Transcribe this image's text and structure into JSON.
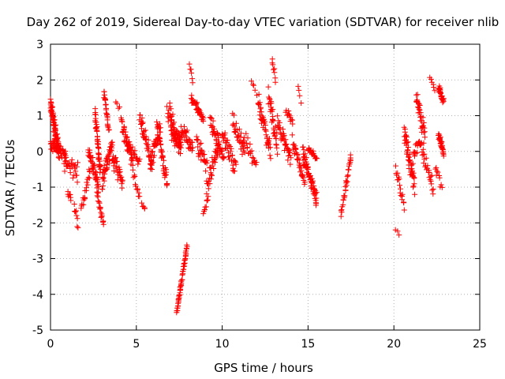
{
  "chart_data": {
    "type": "scatter",
    "title": "Day 262 of 2019, Sidereal Day-to-day VTEC variation (SDTVAR) for receiver nlib",
    "xlabel": "GPS time / hours",
    "ylabel": "SDTVAR / TECUs",
    "xlim": [
      0,
      25
    ],
    "ylim": [
      -5,
      3
    ],
    "xticks": [
      "0",
      "5",
      "10",
      "15",
      "20",
      "25"
    ],
    "yticks": [
      "-5",
      "-4",
      "-3",
      "-2",
      "-1",
      "0",
      "1",
      "2",
      "3"
    ],
    "grid": true,
    "marker": "plus",
    "color": "#ff0000",
    "segments": [
      {
        "x": [
          0.0,
          0.5
        ],
        "y": [
          1.3,
          0.0
        ],
        "n": 90,
        "noise": 0.3,
        "seed": 1
      },
      {
        "x": [
          0.0,
          0.9
        ],
        "y": [
          0.2,
          -0.1
        ],
        "n": 50,
        "noise": 0.25,
        "seed": 2
      },
      {
        "x": [
          0.8,
          1.6
        ],
        "y": [
          -0.3,
          -0.6
        ],
        "n": 30,
        "noise": 0.3,
        "seed": 3
      },
      {
        "x": [
          1.0,
          1.2
        ],
        "y": [
          -1.2,
          -1.3
        ],
        "n": 8,
        "noise": 0.1,
        "seed": 4
      },
      {
        "x": [
          1.4,
          1.6
        ],
        "y": [
          -1.5,
          -2.1
        ],
        "n": 8,
        "noise": 0.1,
        "seed": 5
      },
      {
        "x": [
          1.8,
          2.3
        ],
        "y": [
          -1.6,
          -0.5
        ],
        "n": 20,
        "noise": 0.2,
        "seed": 6
      },
      {
        "x": [
          2.2,
          2.8
        ],
        "y": [
          0.1,
          -1.0
        ],
        "n": 45,
        "noise": 0.3,
        "seed": 7
      },
      {
        "x": [
          2.6,
          2.9
        ],
        "y": [
          1.1,
          -0.6
        ],
        "n": 45,
        "noise": 0.2,
        "seed": 8
      },
      {
        "x": [
          2.7,
          3.1
        ],
        "y": [
          -1.2,
          -2.0
        ],
        "n": 20,
        "noise": 0.15,
        "seed": 9
      },
      {
        "x": [
          3.0,
          3.6
        ],
        "y": [
          -0.9,
          0.3
        ],
        "n": 45,
        "noise": 0.3,
        "seed": 10
      },
      {
        "x": [
          3.1,
          3.4
        ],
        "y": [
          1.7,
          0.6
        ],
        "n": 25,
        "noise": 0.15,
        "seed": 11
      },
      {
        "x": [
          3.6,
          4.2
        ],
        "y": [
          -0.2,
          -0.9
        ],
        "n": 35,
        "noise": 0.3,
        "seed": 12
      },
      {
        "x": [
          3.8,
          4.0
        ],
        "y": [
          1.4,
          1.2
        ],
        "n": 4,
        "noise": 0.1,
        "seed": 13
      },
      {
        "x": [
          4.1,
          4.8
        ],
        "y": [
          0.9,
          -0.4
        ],
        "n": 40,
        "noise": 0.3,
        "seed": 14
      },
      {
        "x": [
          4.4,
          5.2
        ],
        "y": [
          0.3,
          -0.3
        ],
        "n": 25,
        "noise": 0.2,
        "seed": 15
      },
      {
        "x": [
          4.8,
          5.2
        ],
        "y": [
          -0.6,
          -1.3
        ],
        "n": 12,
        "noise": 0.15,
        "seed": 16
      },
      {
        "x": [
          5.2,
          5.9
        ],
        "y": [
          1.0,
          -0.3
        ],
        "n": 40,
        "noise": 0.3,
        "seed": 17
      },
      {
        "x": [
          5.3,
          5.5
        ],
        "y": [
          -1.5,
          -1.6
        ],
        "n": 5,
        "noise": 0.1,
        "seed": 18
      },
      {
        "x": [
          5.8,
          6.4
        ],
        "y": [
          -0.3,
          0.6
        ],
        "n": 40,
        "noise": 0.3,
        "seed": 19
      },
      {
        "x": [
          6.2,
          6.8
        ],
        "y": [
          0.7,
          -0.9
        ],
        "n": 40,
        "noise": 0.3,
        "seed": 20
      },
      {
        "x": [
          6.8,
          7.6
        ],
        "y": [
          1.2,
          0.0
        ],
        "n": 45,
        "noise": 0.35,
        "seed": 21
      },
      {
        "x": [
          7.0,
          7.6
        ],
        "y": [
          0.6,
          0.2
        ],
        "n": 40,
        "noise": 0.3,
        "seed": 22
      },
      {
        "x": [
          7.35,
          7.95
        ],
        "y": [
          -4.5,
          -2.65
        ],
        "n": 55,
        "noise": 0.06,
        "seed": 23
      },
      {
        "x": [
          7.6,
          8.3
        ],
        "y": [
          0.6,
          0.2
        ],
        "n": 35,
        "noise": 0.3,
        "seed": 24
      },
      {
        "x": [
          8.1,
          8.3
        ],
        "y": [
          2.4,
          2.0
        ],
        "n": 6,
        "noise": 0.1,
        "seed": 25
      },
      {
        "x": [
          8.2,
          8.9
        ],
        "y": [
          1.5,
          0.9
        ],
        "n": 40,
        "noise": 0.15,
        "seed": 26
      },
      {
        "x": [
          8.5,
          9.1
        ],
        "y": [
          0.3,
          -0.4
        ],
        "n": 30,
        "noise": 0.3,
        "seed": 27
      },
      {
        "x": [
          8.9,
          9.2
        ],
        "y": [
          -1.7,
          -1.3
        ],
        "n": 10,
        "noise": 0.1,
        "seed": 28
      },
      {
        "x": [
          9.1,
          9.8
        ],
        "y": [
          -1.0,
          0.3
        ],
        "n": 40,
        "noise": 0.3,
        "seed": 29
      },
      {
        "x": [
          9.3,
          10.1
        ],
        "y": [
          0.9,
          -0.2
        ],
        "n": 40,
        "noise": 0.3,
        "seed": 30
      },
      {
        "x": [
          10.0,
          10.8
        ],
        "y": [
          0.5,
          -0.5
        ],
        "n": 40,
        "noise": 0.35,
        "seed": 31
      },
      {
        "x": [
          10.6,
          11.3
        ],
        "y": [
          0.9,
          0.0
        ],
        "n": 30,
        "noise": 0.3,
        "seed": 32
      },
      {
        "x": [
          11.2,
          12.0
        ],
        "y": [
          0.4,
          -0.4
        ],
        "n": 25,
        "noise": 0.3,
        "seed": 33
      },
      {
        "x": [
          11.7,
          12.0
        ],
        "y": [
          2.0,
          1.6
        ],
        "n": 5,
        "noise": 0.1,
        "seed": 34
      },
      {
        "x": [
          12.1,
          12.8
        ],
        "y": [
          1.4,
          0.0
        ],
        "n": 45,
        "noise": 0.35,
        "seed": 35
      },
      {
        "x": [
          12.7,
          13.2
        ],
        "y": [
          1.6,
          0.1
        ],
        "n": 35,
        "noise": 0.3,
        "seed": 36
      },
      {
        "x": [
          12.9,
          13.1
        ],
        "y": [
          2.6,
          2.0
        ],
        "n": 8,
        "noise": 0.1,
        "seed": 37
      },
      {
        "x": [
          13.2,
          14.0
        ],
        "y": [
          0.8,
          -0.2
        ],
        "n": 40,
        "noise": 0.3,
        "seed": 38
      },
      {
        "x": [
          13.7,
          14.1
        ],
        "y": [
          1.1,
          0.8
        ],
        "n": 12,
        "noise": 0.15,
        "seed": 39
      },
      {
        "x": [
          14.1,
          14.8
        ],
        "y": [
          0.2,
          -0.8
        ],
        "n": 35,
        "noise": 0.3,
        "seed": 40
      },
      {
        "x": [
          14.4,
          14.6
        ],
        "y": [
          1.9,
          1.3
        ],
        "n": 4,
        "noise": 0.1,
        "seed": 41
      },
      {
        "x": [
          14.7,
          15.5
        ],
        "y": [
          0.0,
          -1.4
        ],
        "n": 70,
        "noise": 0.3,
        "seed": 42
      },
      {
        "x": [
          15.0,
          15.5
        ],
        "y": [
          0.1,
          -0.2
        ],
        "n": 20,
        "noise": 0.1,
        "seed": 43
      },
      {
        "x": [
          16.9,
          17.2
        ],
        "y": [
          -1.7,
          -1.1
        ],
        "n": 14,
        "noise": 0.15,
        "seed": 44
      },
      {
        "x": [
          17.2,
          17.5
        ],
        "y": [
          -1.0,
          -0.1
        ],
        "n": 20,
        "noise": 0.1,
        "seed": 45
      },
      {
        "x": [
          20.1,
          20.3
        ],
        "y": [
          -2.2,
          -2.3
        ],
        "n": 3,
        "noise": 0.05,
        "seed": 46
      },
      {
        "x": [
          20.1,
          20.6
        ],
        "y": [
          -0.5,
          -1.5
        ],
        "n": 18,
        "noise": 0.25,
        "seed": 47
      },
      {
        "x": [
          20.6,
          21.2
        ],
        "y": [
          0.5,
          -1.0
        ],
        "n": 50,
        "noise": 0.35,
        "seed": 48
      },
      {
        "x": [
          21.1,
          21.5
        ],
        "y": [
          -0.2,
          0.3
        ],
        "n": 15,
        "noise": 0.25,
        "seed": 49
      },
      {
        "x": [
          21.3,
          21.8
        ],
        "y": [
          1.6,
          0.4
        ],
        "n": 35,
        "noise": 0.3,
        "seed": 50
      },
      {
        "x": [
          21.5,
          22.3
        ],
        "y": [
          0.3,
          -1.1
        ],
        "n": 30,
        "noise": 0.3,
        "seed": 51
      },
      {
        "x": [
          22.1,
          22.4
        ],
        "y": [
          2.1,
          1.7
        ],
        "n": 6,
        "noise": 0.1,
        "seed": 52
      },
      {
        "x": [
          22.4,
          22.8
        ],
        "y": [
          -0.4,
          -1.0
        ],
        "n": 10,
        "noise": 0.15,
        "seed": 53
      },
      {
        "x": [
          22.6,
          22.9
        ],
        "y": [
          1.8,
          1.4
        ],
        "n": 30,
        "noise": 0.12,
        "seed": 54
      },
      {
        "x": [
          22.6,
          22.9
        ],
        "y": [
          0.5,
          -0.1
        ],
        "n": 30,
        "noise": 0.15,
        "seed": 55
      }
    ]
  }
}
